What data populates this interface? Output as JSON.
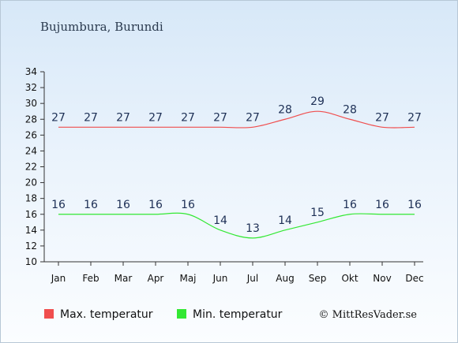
{
  "chart_data": {
    "type": "line",
    "title": "Bujumbura, Burundi",
    "categories": [
      "Jan",
      "Feb",
      "Mar",
      "Apr",
      "Maj",
      "Jun",
      "Jul",
      "Aug",
      "Sep",
      "Okt",
      "Nov",
      "Dec"
    ],
    "series": [
      {
        "name": "Max. temperatur",
        "values": [
          27,
          27,
          27,
          27,
          27,
          27,
          27,
          28,
          29,
          28,
          27,
          27
        ],
        "color": "#f04e4e"
      },
      {
        "name": "Min. temperatur",
        "values": [
          16,
          16,
          16,
          16,
          16,
          14,
          13,
          14,
          15,
          16,
          16,
          16
        ],
        "color": "#33e833"
      }
    ],
    "ylim": [
      10,
      34
    ],
    "yticks": [
      10,
      12,
      14,
      16,
      18,
      20,
      22,
      24,
      26,
      28,
      30,
      32,
      34
    ],
    "grid": false,
    "legend": "bottom"
  },
  "credit": "© MittResVader.se"
}
